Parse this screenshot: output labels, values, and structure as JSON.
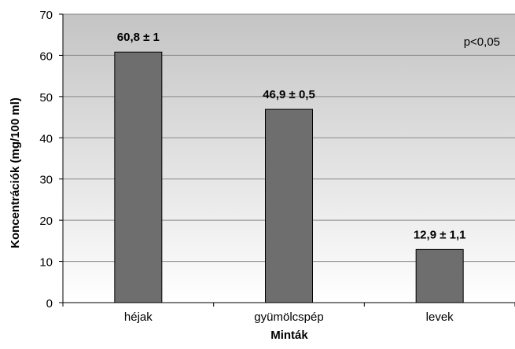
{
  "chart_data": {
    "type": "bar",
    "categories": [
      "héjak",
      "gyümölcspép",
      "levek"
    ],
    "values": [
      60.8,
      46.9,
      12.9
    ],
    "data_labels": [
      "60,8 ± 1",
      "46,9 ± 0,5",
      "12,9 ± 1,1"
    ],
    "title": "",
    "xlabel": "Minták",
    "ylabel": "Koncentrációk (mg/100 ml)",
    "ylim": [
      0,
      70
    ],
    "yticks": [
      0,
      10,
      20,
      30,
      40,
      50,
      60,
      70
    ],
    "annotation": "p<0,05",
    "grid": true,
    "legend": "none",
    "colors": {
      "bar_fill": "#6e6e6e",
      "bar_stroke": "#000000",
      "plot_bg_top": "#c4c4c4",
      "plot_bg_bottom": "#ffffff",
      "gridline": "#8a8a8a",
      "axis": "#000000",
      "text": "#000000"
    }
  }
}
